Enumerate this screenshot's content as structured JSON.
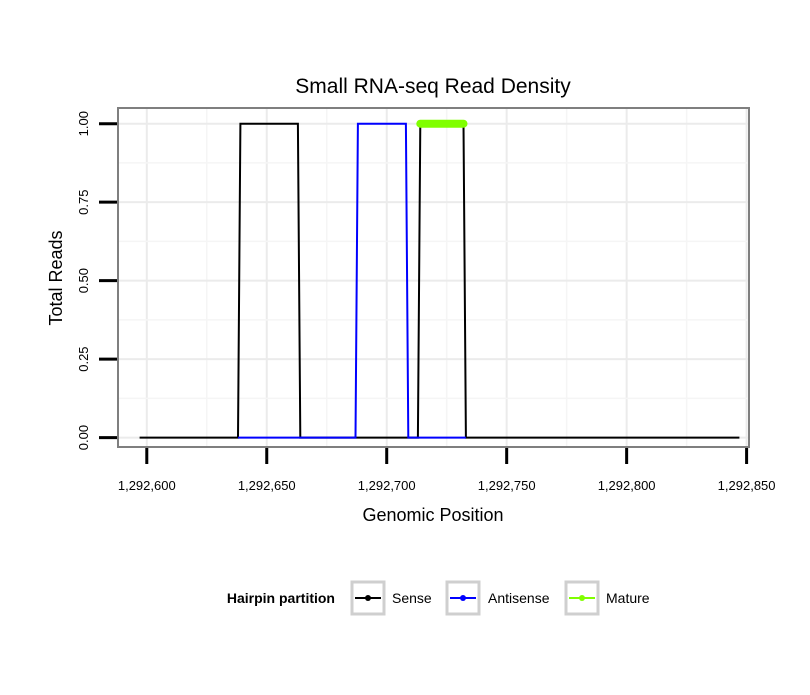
{
  "chart_data": {
    "type": "line",
    "title": "Small RNA-seq Read Density",
    "xlabel": "Genomic Position",
    "ylabel": "Total Reads",
    "xlim": [
      1292588,
      1292851
    ],
    "ylim": [
      -0.03,
      1.05
    ],
    "x_ticks": [
      1292600,
      1292650,
      1292700,
      1292750,
      1292800,
      1292850
    ],
    "x_tick_labels": [
      "1,292,600",
      "1,292,650",
      "1,292,700",
      "1,292,750",
      "1,292,800",
      "1,292,850"
    ],
    "y_ticks": [
      0,
      0.25,
      0.5,
      0.75,
      1
    ],
    "y_tick_labels": [
      "0.00",
      "0.25",
      "0.50",
      "0.75",
      "1.00"
    ],
    "grid": true,
    "legend": {
      "title": "Hairpin partition",
      "position": "bottom"
    },
    "series": [
      {
        "name": "Sense",
        "color": "#000000",
        "line_width": 2,
        "x": [
          1292597,
          1292638,
          1292639,
          1292663,
          1292664,
          1292713,
          1292714,
          1292732,
          1292733,
          1292847
        ],
        "y": [
          0,
          0,
          1,
          1,
          0,
          0,
          1,
          1,
          0,
          0
        ]
      },
      {
        "name": "Antisense",
        "color": "#0000ff",
        "line_width": 2,
        "x": [
          1292638,
          1292687,
          1292688,
          1292708,
          1292709,
          1292733
        ],
        "y": [
          0,
          0,
          1,
          1,
          0,
          0
        ]
      },
      {
        "name": "Mature",
        "color": "#80ff00",
        "line_width": 8,
        "x": [
          1292714,
          1292732
        ],
        "y": [
          1,
          1
        ]
      }
    ]
  }
}
